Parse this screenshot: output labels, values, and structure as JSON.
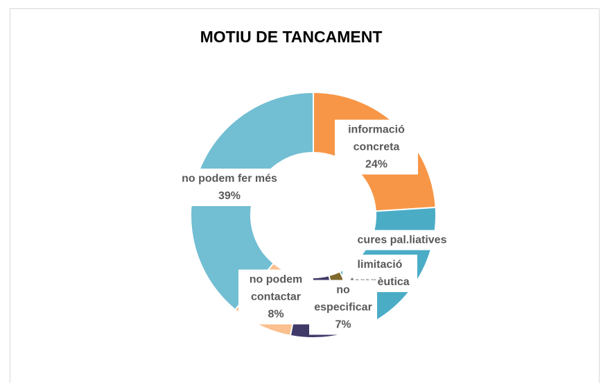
{
  "chart_data": {
    "type": "donut",
    "title": "MOTIU DE TANCAMENT",
    "categories": [
      "informació concreta",
      "cures pal.liatives",
      "limitació terapèutica",
      "no especificar",
      "no podem contactar",
      "no podem fer més"
    ],
    "values": [
      24,
      19,
      3,
      7,
      8,
      39
    ],
    "value_labels": [
      "24%",
      null,
      null,
      "7%",
      "8%",
      "39%"
    ],
    "colors": [
      "#f79646",
      "#4bacc6",
      "#7f6a2e",
      "#403a68",
      "#fac08f",
      "#72bed3"
    ]
  }
}
